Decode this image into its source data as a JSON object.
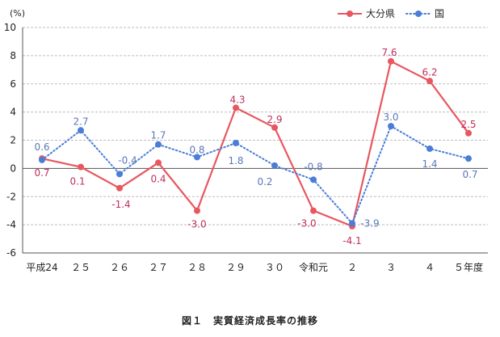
{
  "caption": "図１　実質経済成長率の推移",
  "chart_data": {
    "type": "line",
    "unit_label": "(%)",
    "categories": [
      "平成24",
      "２５",
      "２６",
      "２７",
      "２８",
      "２９",
      "３０",
      "令和元",
      "２",
      "３",
      "４",
      "５年度"
    ],
    "ylim": [
      -6,
      10
    ],
    "yticks": [
      -6,
      -4,
      -2,
      0,
      2,
      4,
      6,
      8,
      10
    ],
    "grid": true,
    "legend_position": "top-right",
    "series": [
      {
        "name": "大分県",
        "color": "#e8575f",
        "style": "solid",
        "values": [
          0.7,
          0.1,
          -1.4,
          0.4,
          -3.0,
          4.3,
          2.9,
          -3.0,
          -4.1,
          7.6,
          6.2,
          2.5
        ],
        "labels": [
          "0.7",
          "0.1",
          "-1.4",
          "0.4",
          "-3.0",
          "4.3",
          "2.9",
          "-3.0",
          "-4.1",
          "7.6",
          "6.2",
          "2.5"
        ],
        "label_color": "#c0305a"
      },
      {
        "name": "国",
        "color": "#4a7dd8",
        "style": "dotted",
        "values": [
          0.6,
          2.7,
          -0.4,
          1.7,
          0.8,
          1.8,
          0.2,
          -0.8,
          -3.9,
          3.0,
          1.4,
          0.7
        ],
        "labels": [
          "0.6",
          "2.7",
          "-0.4",
          "1.7",
          "0.8",
          "1.8",
          "0.2",
          "-0.8",
          "-3.9",
          "3.0",
          "1.4",
          "0.7"
        ],
        "label_color": "#5a78b8"
      }
    ]
  }
}
